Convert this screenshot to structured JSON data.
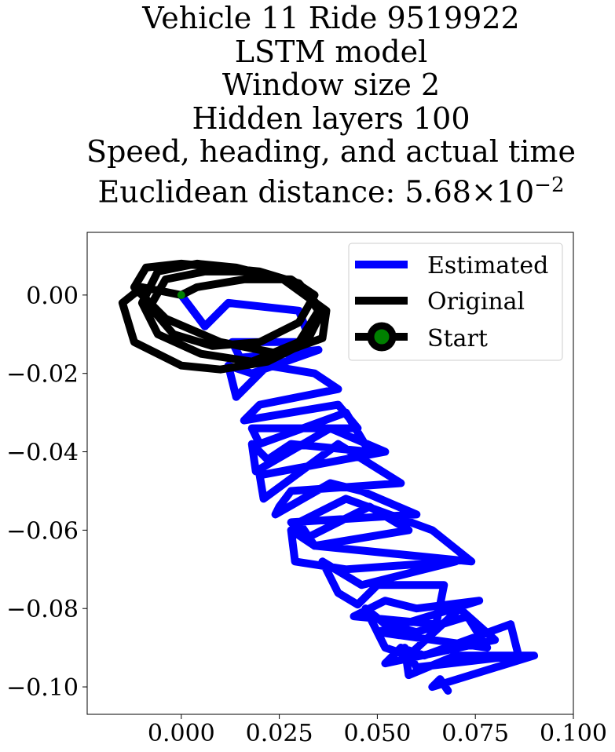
{
  "title_lines": [
    "Vehicle 11 Ride 9519922",
    "LSTM model",
    "Window size 2",
    "Hidden layers 100",
    "Speed, heading, and actual time"
  ],
  "title_last_line": {
    "prefix": "Euclidean distance: 5.68",
    "times": "×",
    "base": "10",
    "exponent": "−2"
  },
  "chart_data": {
    "type": "line",
    "xlim": [
      -0.024,
      0.1
    ],
    "ylim": [
      -0.107,
      0.016
    ],
    "xticks": [
      0.0,
      0.025,
      0.05,
      0.075,
      0.1
    ],
    "xtick_labels": [
      "0.000",
      "0.025",
      "0.050",
      "0.075",
      "0.100"
    ],
    "yticks": [
      0.0,
      -0.02,
      -0.04,
      -0.06,
      -0.08,
      -0.1
    ],
    "ytick_labels": [
      "0.00",
      "−0.02",
      "−0.04",
      "−0.06",
      "−0.08",
      "−0.10"
    ],
    "grid": false,
    "legend_position": "top-right",
    "series": [
      {
        "name": "Estimated",
        "color": "#0000ff",
        "x": [
          0.0,
          0.006,
          0.012,
          0.03,
          0.033,
          0.013,
          0.015,
          0.035,
          0.018,
          0.012,
          0.014,
          0.022,
          0.034,
          0.04,
          0.02,
          0.016,
          0.04,
          0.045,
          0.018,
          0.02,
          0.042,
          0.048,
          0.028,
          0.022,
          0.018,
          0.019,
          0.038,
          0.052,
          0.02,
          0.021,
          0.04,
          0.056,
          0.028,
          0.025,
          0.024,
          0.038,
          0.046,
          0.06,
          0.028,
          0.032,
          0.048,
          0.058,
          0.034,
          0.03,
          0.042,
          0.064,
          0.074,
          0.034,
          0.028,
          0.029,
          0.042,
          0.07,
          0.046,
          0.036,
          0.04,
          0.045,
          0.05,
          0.067,
          0.065,
          0.044,
          0.052,
          0.06,
          0.076,
          0.05,
          0.047,
          0.052,
          0.06,
          0.073,
          0.078,
          0.05,
          0.052,
          0.058,
          0.071,
          0.08,
          0.052,
          0.056,
          0.062,
          0.084,
          0.086,
          0.06,
          0.057,
          0.058,
          0.07,
          0.09,
          0.064,
          0.066,
          0.068
        ],
        "y": [
          0.0,
          -0.008,
          -0.002,
          -0.004,
          -0.012,
          -0.012,
          -0.016,
          -0.014,
          -0.02,
          -0.018,
          -0.026,
          -0.018,
          -0.02,
          -0.024,
          -0.028,
          -0.032,
          -0.028,
          -0.034,
          -0.034,
          -0.038,
          -0.03,
          -0.04,
          -0.038,
          -0.042,
          -0.038,
          -0.045,
          -0.034,
          -0.04,
          -0.046,
          -0.052,
          -0.038,
          -0.048,
          -0.05,
          -0.054,
          -0.056,
          -0.048,
          -0.05,
          -0.056,
          -0.058,
          -0.062,
          -0.054,
          -0.06,
          -0.064,
          -0.058,
          -0.052,
          -0.06,
          -0.068,
          -0.064,
          -0.06,
          -0.068,
          -0.07,
          -0.068,
          -0.074,
          -0.068,
          -0.076,
          -0.079,
          -0.074,
          -0.074,
          -0.084,
          -0.082,
          -0.078,
          -0.08,
          -0.078,
          -0.086,
          -0.08,
          -0.084,
          -0.086,
          -0.082,
          -0.09,
          -0.086,
          -0.09,
          -0.092,
          -0.08,
          -0.088,
          -0.094,
          -0.09,
          -0.092,
          -0.084,
          -0.092,
          -0.095,
          -0.09,
          -0.097,
          -0.092,
          -0.092,
          -0.1,
          -0.098,
          -0.101
        ]
      },
      {
        "name": "Original",
        "color": "#000000",
        "x": [
          0.0,
          -0.01,
          -0.015,
          -0.012,
          0.0,
          0.01,
          0.022,
          0.032,
          0.036,
          0.03,
          0.02,
          0.01,
          0.0,
          -0.009,
          -0.012,
          -0.004,
          0.01,
          0.025,
          0.036,
          0.037,
          0.026,
          0.014,
          0.004,
          -0.006,
          -0.01,
          -0.006,
          0.005,
          0.018,
          0.03,
          0.035,
          0.03,
          0.018,
          0.006,
          -0.004,
          -0.008,
          -0.002,
          0.008,
          0.02,
          0.03,
          0.034,
          0.028,
          0.016,
          0.004,
          0.0
        ],
        "y": [
          0.0,
          0.002,
          -0.002,
          -0.012,
          -0.018,
          -0.019,
          -0.017,
          -0.012,
          -0.004,
          0.003,
          0.006,
          0.007,
          0.008,
          0.007,
          0.002,
          -0.006,
          -0.012,
          -0.015,
          -0.011,
          -0.004,
          0.004,
          0.007,
          0.008,
          0.006,
          -0.002,
          -0.01,
          -0.015,
          -0.017,
          -0.012,
          -0.004,
          0.003,
          0.006,
          0.006,
          0.004,
          -0.003,
          -0.01,
          -0.013,
          -0.012,
          -0.007,
          0.0,
          0.004,
          0.004,
          0.002,
          0.0
        ]
      },
      {
        "name": "Start",
        "color": "#000000",
        "marker_color": "#008000",
        "x": [
          0.0
        ],
        "y": [
          0.0
        ]
      }
    ]
  }
}
